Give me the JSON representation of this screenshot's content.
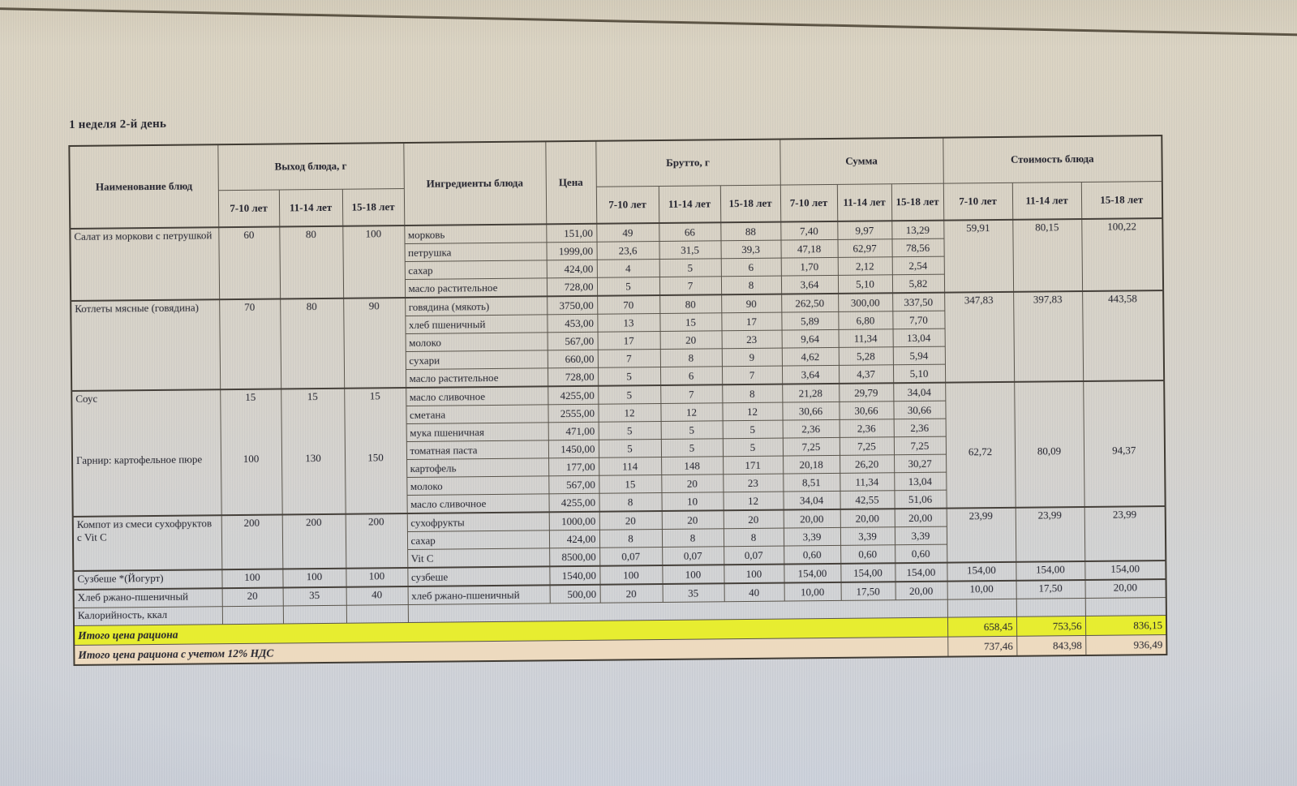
{
  "page": {
    "title": "1 неделя 2-й день"
  },
  "table": {
    "headers": {
      "dish": "Наименование блюд",
      "output": "Выход блюда, г",
      "ingredients": "Ингредиенты блюда",
      "price": "Цена",
      "brutto": "Брутто, г",
      "sum": "Сумма",
      "cost": "Стоимость блюда",
      "age_groups": [
        "7-10 лет",
        "11-14 лет",
        "15-18 лет"
      ]
    },
    "groups": [
      {
        "name_blocks": [
          {
            "text": "Салат из моркови с петрушкой",
            "row": 0
          }
        ],
        "output_blocks": [
          {
            "values": [
              "60",
              "80",
              "100"
            ],
            "row": 0
          }
        ],
        "cost_block": {
          "values": [
            "59,91",
            "80,15",
            "100,22"
          ],
          "row": 0
        },
        "rows": [
          {
            "ingredient": "морковь",
            "price": "151,00",
            "brutto": [
              "49",
              "66",
              "88"
            ],
            "sum": [
              "7,40",
              "9,97",
              "13,29"
            ]
          },
          {
            "ingredient": "петрушка",
            "price": "1999,00",
            "brutto": [
              "23,6",
              "31,5",
              "39,3"
            ],
            "sum": [
              "47,18",
              "62,97",
              "78,56"
            ]
          },
          {
            "ingredient": "сахар",
            "price": "424,00",
            "brutto": [
              "4",
              "5",
              "6"
            ],
            "sum": [
              "1,70",
              "2,12",
              "2,54"
            ]
          },
          {
            "ingredient": "масло растительное",
            "price": "728,00",
            "brutto": [
              "5",
              "7",
              "8"
            ],
            "sum": [
              "3,64",
              "5,10",
              "5,82"
            ]
          }
        ]
      },
      {
        "name_blocks": [
          {
            "text": "Котлеты мясные (говядина)",
            "row": 0
          }
        ],
        "output_blocks": [
          {
            "values": [
              "70",
              "80",
              "90"
            ],
            "row": 0
          }
        ],
        "cost_block": {
          "values": [
            "347,83",
            "397,83",
            "443,58"
          ],
          "row": 0
        },
        "rows": [
          {
            "ingredient": "говядина (мякоть)",
            "price": "3750,00",
            "brutto": [
              "70",
              "80",
              "90"
            ],
            "sum": [
              "262,50",
              "300,00",
              "337,50"
            ]
          },
          {
            "ingredient": "хлеб пшеничный",
            "price": "453,00",
            "brutto": [
              "13",
              "15",
              "17"
            ],
            "sum": [
              "5,89",
              "6,80",
              "7,70"
            ]
          },
          {
            "ingredient": "молоко",
            "price": "567,00",
            "brutto": [
              "17",
              "20",
              "23"
            ],
            "sum": [
              "9,64",
              "11,34",
              "13,04"
            ]
          },
          {
            "ingredient": "сухари",
            "price": "660,00",
            "brutto": [
              "7",
              "8",
              "9"
            ],
            "sum": [
              "4,62",
              "5,28",
              "5,94"
            ]
          },
          {
            "ingredient": "масло растительное",
            "price": "728,00",
            "brutto": [
              "5",
              "6",
              "7"
            ],
            "sum": [
              "3,64",
              "4,37",
              "5,10"
            ]
          }
        ]
      },
      {
        "name_blocks": [
          {
            "text": "Соус",
            "row": 0
          },
          {
            "text": "Гарнир: картофельное пюре",
            "row": 4
          }
        ],
        "output_blocks": [
          {
            "values": [
              "15",
              "15",
              "15"
            ],
            "row": 0
          },
          {
            "values": [
              "100",
              "130",
              "150"
            ],
            "row": 4
          }
        ],
        "cost_block": {
          "values": [
            "62,72",
            "80,09",
            "94,37"
          ],
          "row": 4
        },
        "rows": [
          {
            "ingredient": "масло сливочное",
            "price": "4255,00",
            "brutto": [
              "5",
              "7",
              "8"
            ],
            "sum": [
              "21,28",
              "29,79",
              "34,04"
            ]
          },
          {
            "ingredient": "сметана",
            "price": "2555,00",
            "brutto": [
              "12",
              "12",
              "12"
            ],
            "sum": [
              "30,66",
              "30,66",
              "30,66"
            ]
          },
          {
            "ingredient": "мука пшеничная",
            "price": "471,00",
            "brutto": [
              "5",
              "5",
              "5"
            ],
            "sum": [
              "2,36",
              "2,36",
              "2,36"
            ]
          },
          {
            "ingredient": "томатная паста",
            "price": "1450,00",
            "brutto": [
              "5",
              "5",
              "5"
            ],
            "sum": [
              "7,25",
              "7,25",
              "7,25"
            ]
          },
          {
            "ingredient": "картофель",
            "price": "177,00",
            "brutto": [
              "114",
              "148",
              "171"
            ],
            "sum": [
              "20,18",
              "26,20",
              "30,27"
            ]
          },
          {
            "ingredient": "молоко",
            "price": "567,00",
            "brutto": [
              "15",
              "20",
              "23"
            ],
            "sum": [
              "8,51",
              "11,34",
              "13,04"
            ]
          },
          {
            "ingredient": "масло сливочное",
            "price": "4255,00",
            "brutto": [
              "8",
              "10",
              "12"
            ],
            "sum": [
              "34,04",
              "42,55",
              "51,06"
            ]
          }
        ]
      },
      {
        "name_blocks": [
          {
            "text": "Компот из смеси сухофруктов с Vit C",
            "row": 0
          }
        ],
        "output_blocks": [
          {
            "values": [
              "200",
              "200",
              "200"
            ],
            "row": 0
          }
        ],
        "cost_block": {
          "values": [
            "23,99",
            "23,99",
            "23,99"
          ],
          "row": 0
        },
        "rows": [
          {
            "ingredient": "сухофрукты",
            "price": "1000,00",
            "brutto": [
              "20",
              "20",
              "20"
            ],
            "sum": [
              "20,00",
              "20,00",
              "20,00"
            ]
          },
          {
            "ingredient": "сахар",
            "price": "424,00",
            "brutto": [
              "8",
              "8",
              "8"
            ],
            "sum": [
              "3,39",
              "3,39",
              "3,39"
            ]
          },
          {
            "ingredient": "Vit C",
            "price": "8500,00",
            "brutto": [
              "0,07",
              "0,07",
              "0,07"
            ],
            "sum": [
              "0,60",
              "0,60",
              "0,60"
            ]
          }
        ]
      },
      {
        "name_blocks": [
          {
            "text": "Сузбеше *(Йогурт)",
            "row": 0
          }
        ],
        "output_blocks": [
          {
            "values": [
              "100",
              "100",
              "100"
            ],
            "row": 0
          }
        ],
        "cost_block": {
          "values": [
            "154,00",
            "154,00",
            "154,00"
          ],
          "row": 0
        },
        "rows": [
          {
            "ingredient": "сузбеше",
            "price": "1540,00",
            "brutto": [
              "100",
              "100",
              "100"
            ],
            "sum": [
              "154,00",
              "154,00",
              "154,00"
            ]
          }
        ]
      },
      {
        "name_blocks": [
          {
            "text": "Хлеб ржано-пшеничный",
            "row": 0
          }
        ],
        "output_blocks": [
          {
            "values": [
              "20",
              "35",
              "40"
            ],
            "row": 0
          }
        ],
        "cost_block": {
          "values": [
            "10,00",
            "17,50",
            "20,00"
          ],
          "row": 0
        },
        "rows": [
          {
            "ingredient": "хлеб ржано-пшеничный",
            "price": "500,00",
            "brutto": [
              "20",
              "35",
              "40"
            ],
            "sum": [
              "10,00",
              "17,50",
              "20,00"
            ]
          }
        ]
      }
    ],
    "footer": {
      "calories_label": "Калорийность, ккал",
      "total_label": "Итого цена рациона",
      "total_values": [
        "658,45",
        "753,56",
        "836,15"
      ],
      "total_vat_label": "Итого цена рациона с учетом 12% НДС",
      "total_vat_values": [
        "737,46",
        "843,98",
        "936,49"
      ]
    },
    "colors": {
      "highlight_yellow": "#e7ed30",
      "highlight_tan": "#eddabf"
    }
  }
}
